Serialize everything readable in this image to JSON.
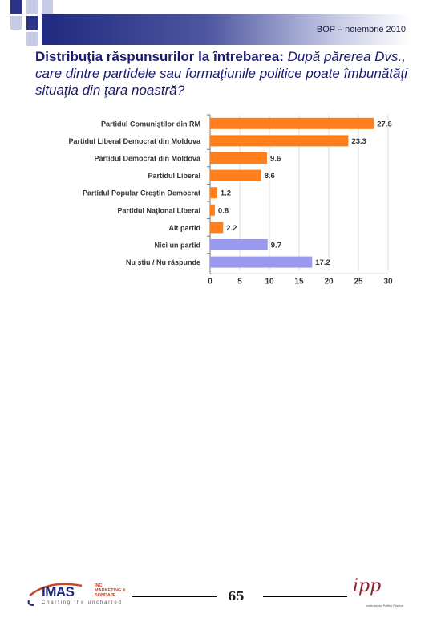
{
  "header": {
    "text": "BOP – noiembrie 2010"
  },
  "title": {
    "lead": "Distribuţia răspunsurilor la întrebarea:",
    "question": "După părerea Dvs., care dintre partidele sau formaţiunile politice poate îmbunătăţi situaţia din ţara noastră?"
  },
  "chart_data": {
    "type": "bar",
    "orientation": "horizontal",
    "categories": [
      "Partidul Comuniştilor din RM",
      "Partidul Liberal Democrat din Moldova",
      "Partidul Democrat din Moldova",
      "Partidul Liberal",
      "Partidul Popular Creştin Democrat",
      "Partidul Naţional Liberal",
      "Alt partid",
      "Nici un partid",
      "Nu ştiu / Nu răspunde"
    ],
    "values": [
      27.6,
      23.3,
      9.6,
      8.6,
      1.2,
      0.8,
      2.2,
      9.7,
      17.2
    ],
    "value_labels": [
      "27.6",
      "23.3",
      "9.6",
      "8.6",
      "1.2",
      "0.8",
      "2.2",
      "9.7",
      "17.2"
    ],
    "bar_colors": [
      "#ff7f1e",
      "#ff7f1e",
      "#ff7f1e",
      "#ff7f1e",
      "#ff7f1e",
      "#ff7f1e",
      "#ff7f1e",
      "#9999ee",
      "#9999ee"
    ],
    "xlim": [
      0,
      30
    ],
    "xticks": [
      0,
      5,
      10,
      15,
      20,
      25,
      30
    ],
    "grid": true,
    "legend": "none"
  },
  "footer": {
    "page_number": "65",
    "imas_logo_text": "IMAS",
    "imas_logo_sub": "INC MARKETING & SONDAJE",
    "imas_tagline": "Charting the uncharted",
    "ipp_logo_text": "ipp",
    "ipp_logo_sub": "Institutul de Politici Publice"
  },
  "colors": {
    "header_dark": "#1f2a80",
    "square": "#2b3389",
    "square_light": "#b8bce0",
    "title": "#1a1a6e"
  }
}
